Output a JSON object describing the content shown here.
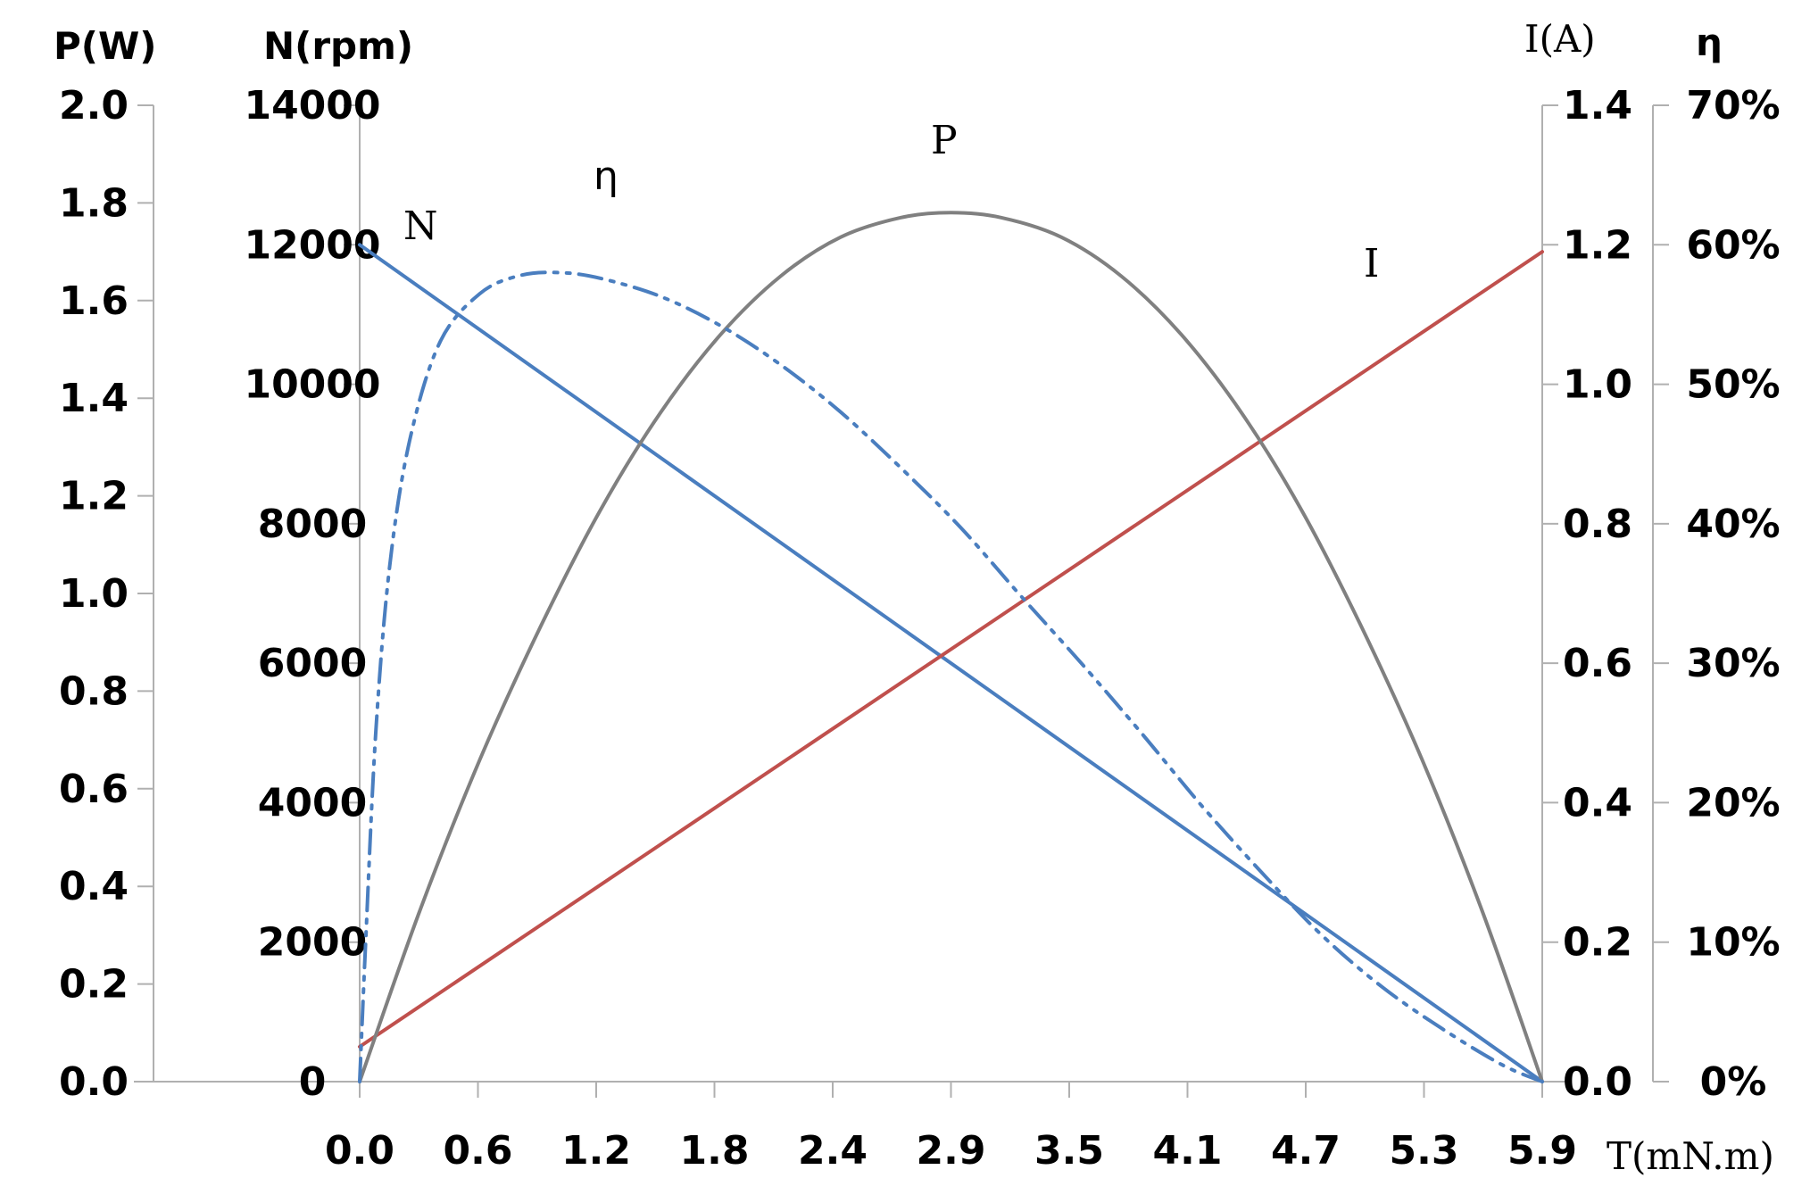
{
  "chart_data": {
    "type": "line",
    "x_axis": {
      "title": "T(mN.m)",
      "tick_labels": [
        "0.0",
        "0.6",
        "1.2",
        "1.8",
        "2.4",
        "2.9",
        "3.5",
        "4.1",
        "4.7",
        "5.3",
        "5.9"
      ],
      "range": [
        0.0,
        5.9
      ]
    },
    "y_axes": {
      "power": {
        "title": "P(W)",
        "tick_labels": [
          "0.0",
          "0.2",
          "0.4",
          "0.6",
          "0.8",
          "1.0",
          "1.2",
          "1.4",
          "1.6",
          "1.8",
          "2.0"
        ],
        "range": [
          0,
          2.0
        ],
        "side": "left-outer"
      },
      "speed": {
        "title": "N(rpm)",
        "tick_labels": [
          "0",
          "2000",
          "4000",
          "6000",
          "8000",
          "10000",
          "12000",
          "14000"
        ],
        "range": [
          0,
          14000
        ],
        "side": "left-inner"
      },
      "current": {
        "title": "I(A)",
        "tick_labels": [
          "0.0",
          "0.2",
          "0.4",
          "0.6",
          "0.8",
          "1.0",
          "1.2",
          "1.4"
        ],
        "range": [
          0,
          1.4
        ],
        "side": "right-inner"
      },
      "efficiency": {
        "title": "η",
        "tick_labels": [
          "0%",
          "10%",
          "20%",
          "30%",
          "40%",
          "50%",
          "60%",
          "70%"
        ],
        "range": [
          0,
          70
        ],
        "side": "right-outer"
      }
    },
    "series": [
      {
        "name": "N",
        "axis": "speed",
        "color": "#4a7ebf",
        "style": "solid",
        "x": [
          0.0,
          5.9
        ],
        "values": [
          12000,
          0
        ]
      },
      {
        "name": "I",
        "axis": "current",
        "color": "#c0504d",
        "style": "solid",
        "x": [
          0.0,
          5.9
        ],
        "values": [
          0.05,
          1.19
        ]
      },
      {
        "name": "P",
        "axis": "power",
        "color": "#808080",
        "style": "solid",
        "x": [
          0.0,
          0.3,
          0.6,
          0.9,
          1.2,
          1.5,
          1.8,
          2.1,
          2.4,
          2.7,
          2.95,
          3.2,
          3.5,
          3.8,
          4.1,
          4.4,
          4.7,
          5.0,
          5.3,
          5.6,
          5.9
        ],
        "values": [
          0.0,
          0.35,
          0.66,
          0.93,
          1.17,
          1.37,
          1.53,
          1.65,
          1.73,
          1.77,
          1.78,
          1.77,
          1.73,
          1.65,
          1.53,
          1.37,
          1.17,
          0.93,
          0.66,
          0.35,
          0.0
        ]
      },
      {
        "name": "η",
        "axis": "efficiency",
        "color": "#4a7ebf",
        "style": "dash-dot-dot",
        "x": [
          0.0,
          0.03,
          0.08,
          0.15,
          0.25,
          0.4,
          0.6,
          0.8,
          1.0,
          1.2,
          1.5,
          1.8,
          2.1,
          2.4,
          2.7,
          3.0,
          3.3,
          3.6,
          3.9,
          4.2,
          4.5,
          4.8,
          5.1,
          5.4,
          5.7,
          5.9
        ],
        "values": [
          0.0,
          10.0,
          25.0,
          37.0,
          46.0,
          53.0,
          56.5,
          57.8,
          58.0,
          57.6,
          56.3,
          54.2,
          51.4,
          48.0,
          44.0,
          39.7,
          34.8,
          30.0,
          25.0,
          19.8,
          15.0,
          10.5,
          6.8,
          3.8,
          1.2,
          0.0
        ]
      }
    ],
    "annotations": [
      "N",
      "η",
      "P",
      "I"
    ],
    "grid": false,
    "legend": "none"
  }
}
